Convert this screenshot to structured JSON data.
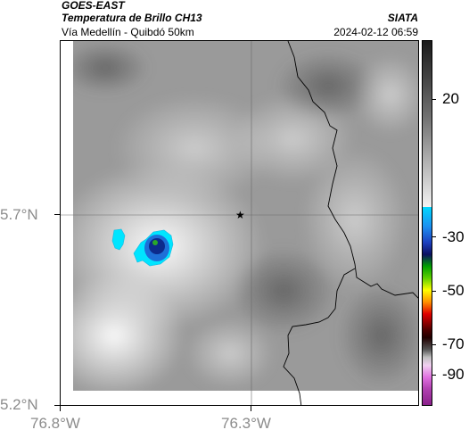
{
  "header": {
    "satellite": "GOES-EAST",
    "product": "Temperatura de Brillo CH13",
    "region": "Vía Medellín - Quibdó 50km",
    "org": "SIATA",
    "datetime": "2024-02-12 06:59"
  },
  "axes": {
    "lat_ticks": [
      "5.7°N",
      "5.2°N"
    ],
    "lon_ticks": [
      "76.8°W",
      "76.3°W"
    ]
  },
  "map": {
    "marker": "star-marker",
    "gridlines": true,
    "background_color": "#9a9a9a",
    "cold_cloud_colors": [
      "#00e5ff",
      "#1e6fd8",
      "#0c2a8c"
    ]
  },
  "colorbar": {
    "labels": [
      "20",
      "-30",
      "-50",
      "-70",
      "-90"
    ],
    "colors": {
      "gray_top": "#1a1a1a",
      "gray_bottom": "#f2f2f2",
      "cyan": "#00d8ff",
      "blue": "#1c3fbf",
      "green": "#00c000",
      "yellow": "#ffff00",
      "red": "#e00000",
      "dark": "#200000",
      "magenta": "#b040b0"
    }
  }
}
